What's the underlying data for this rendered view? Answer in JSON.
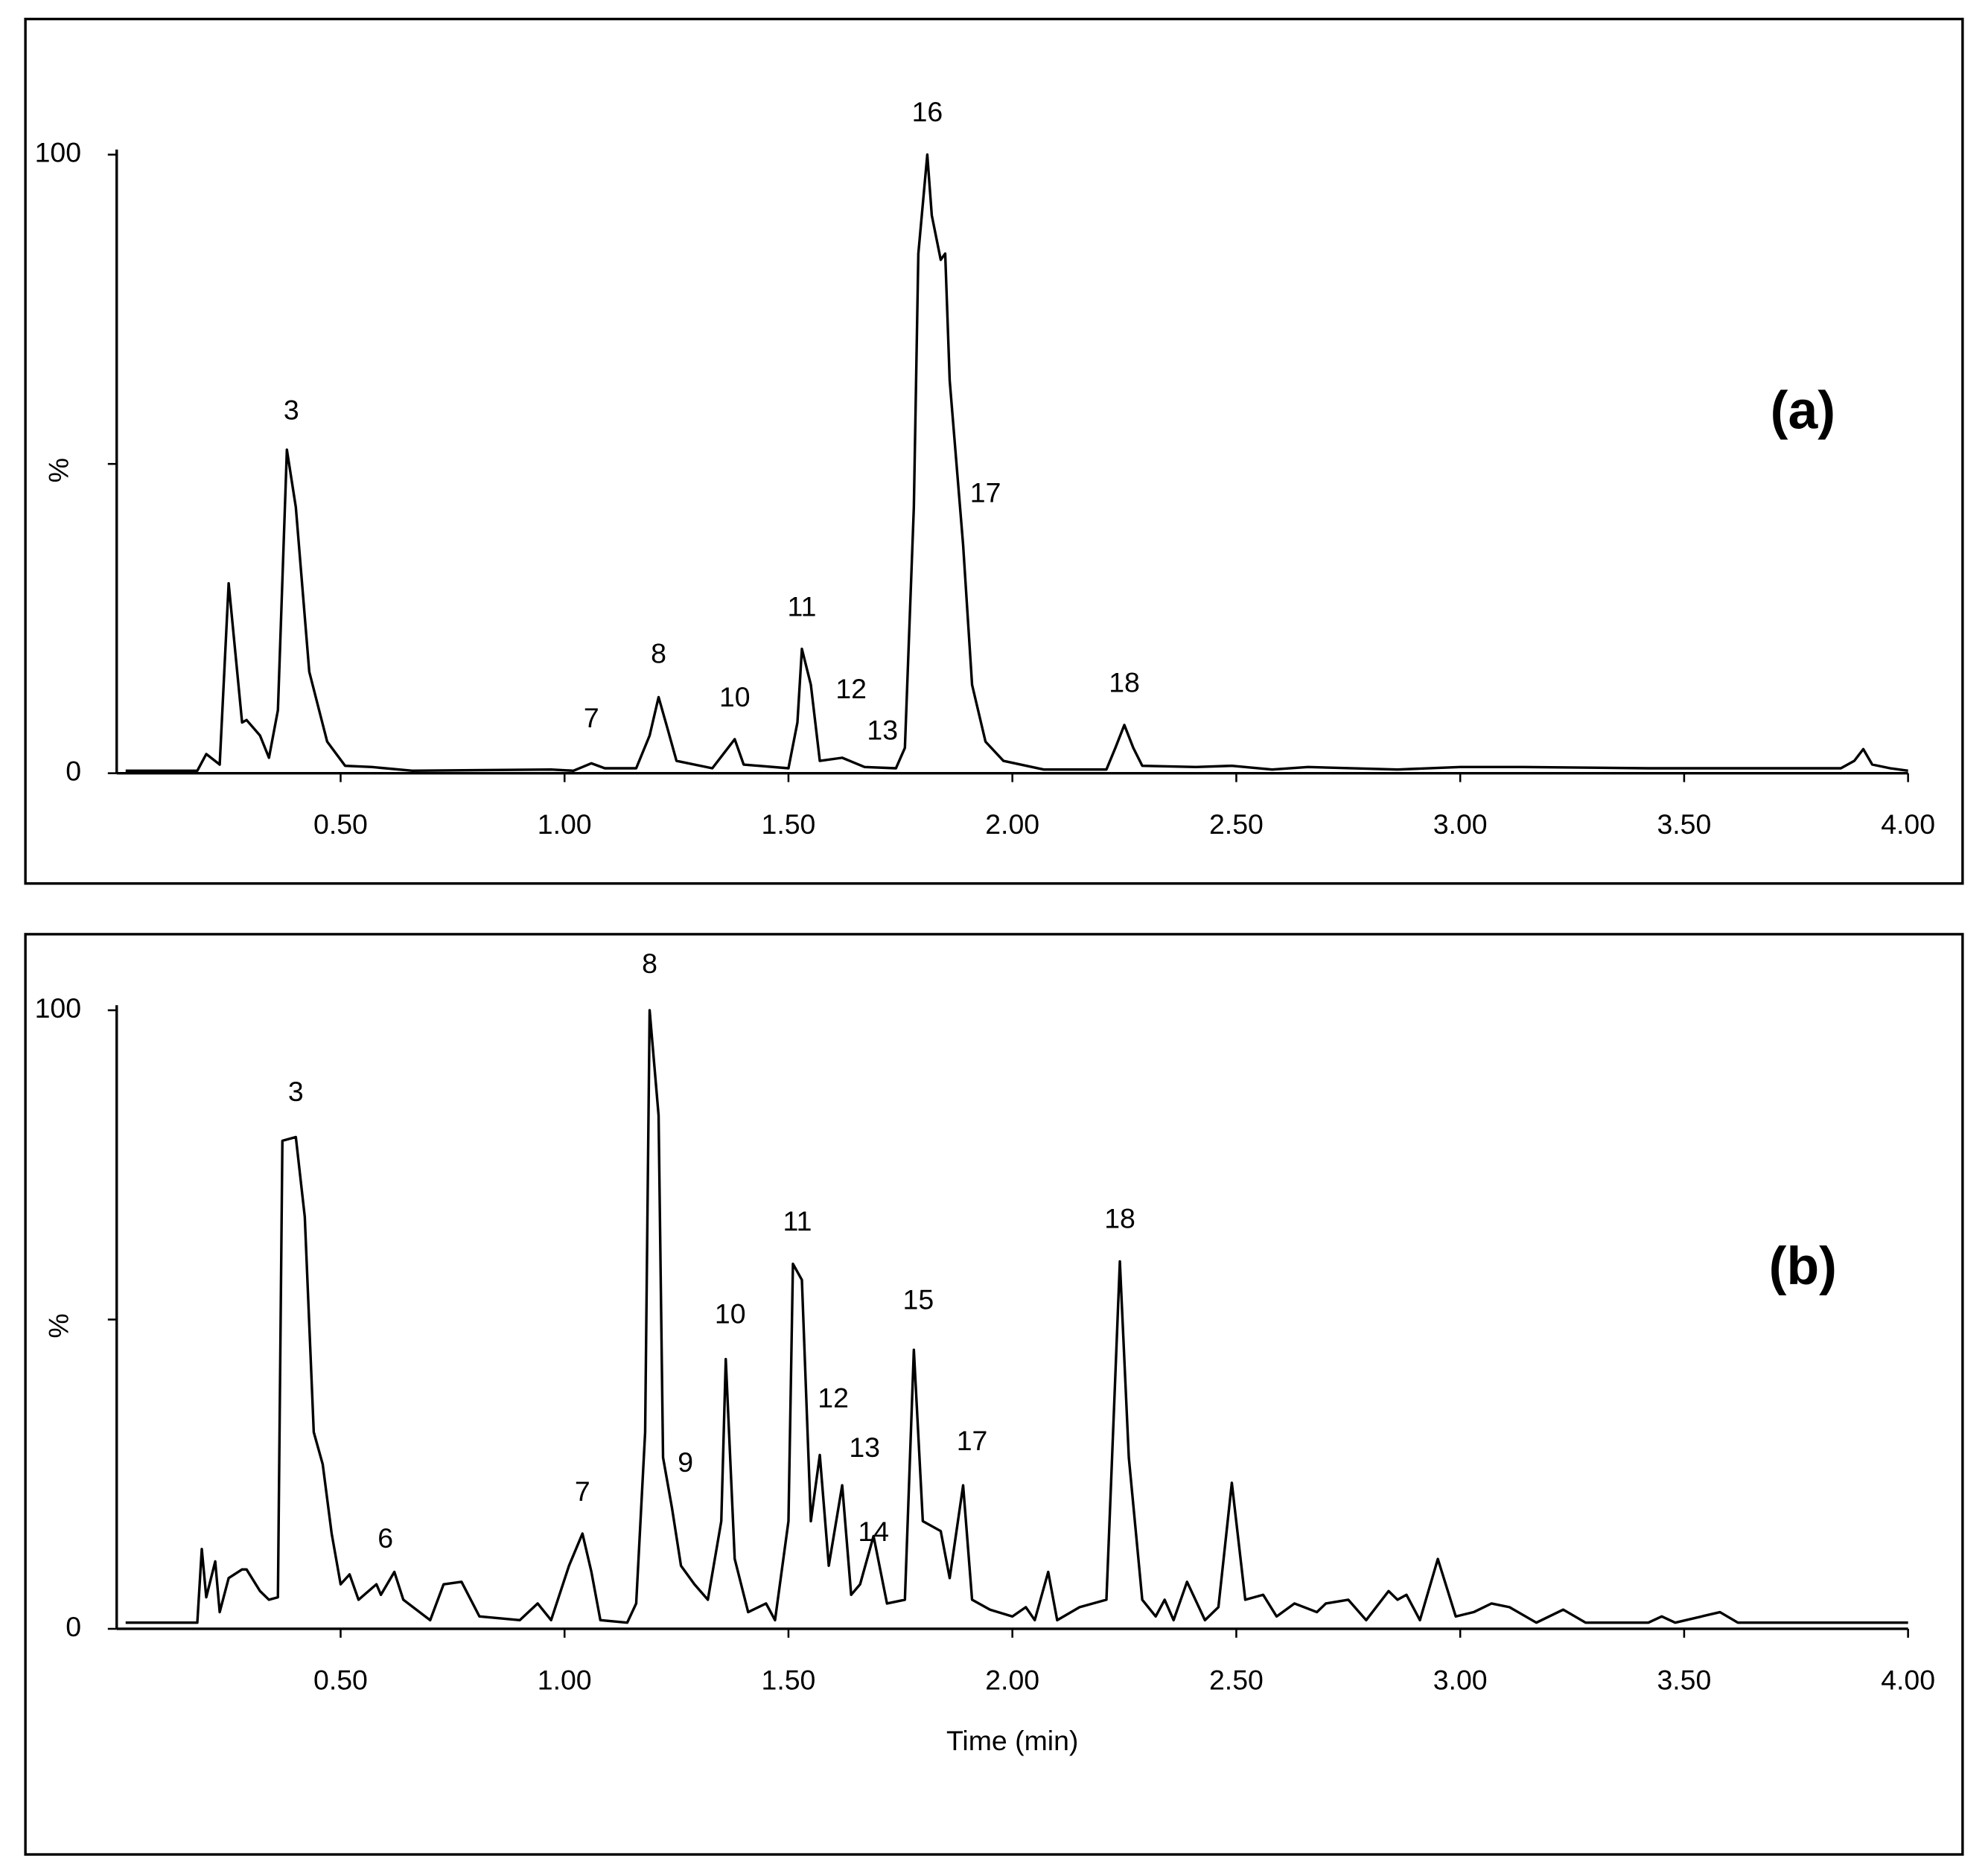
{
  "chart_data": [
    {
      "type": "line",
      "panel_label": "(a)",
      "ylabel": "%",
      "color": "#000000",
      "xlim": [
        0,
        4
      ],
      "ylim": [
        0,
        100
      ],
      "xticks": [
        {
          "value": 0.5,
          "label": "0.50"
        },
        {
          "value": 1,
          "label": "1.00"
        },
        {
          "value": 1.5,
          "label": "1.50"
        },
        {
          "value": 2,
          "label": "2.00"
        },
        {
          "value": 2.5,
          "label": "2.50"
        },
        {
          "value": 3,
          "label": "3.00"
        },
        {
          "value": 3.5,
          "label": "3.50"
        },
        {
          "value": 4,
          "label": "4.00"
        }
      ],
      "yticks": [
        0,
        {
          "value": 50,
          "label": null
        },
        100
      ],
      "x": [
        0.02,
        0.18,
        0.2,
        0.23,
        0.25,
        0.28,
        0.29,
        0.32,
        0.34,
        0.36,
        0.38,
        0.4,
        0.43,
        0.47,
        0.51,
        0.57,
        0.66,
        0.97,
        1.02,
        1.06,
        1.09,
        1.16,
        1.19,
        1.21,
        1.23,
        1.25,
        1.33,
        1.38,
        1.4,
        1.5,
        1.52,
        1.53,
        1.55,
        1.57,
        1.62,
        1.67,
        1.74,
        1.76,
        1.78,
        1.79,
        1.81,
        1.82,
        1.84,
        1.85,
        1.86,
        1.89,
        1.91,
        1.94,
        1.98,
        2.07,
        2.21,
        2.23,
        2.25,
        2.27,
        2.29,
        2.41,
        2.49,
        2.58,
        2.66,
        2.86,
        3.0,
        3.14,
        3.42,
        3.85,
        3.88,
        3.9,
        3.92,
        3.96,
        4.0
      ],
      "values": [
        0.4,
        0.4,
        3.1,
        1.4,
        30.7,
        8.2,
        8.6,
        6.1,
        2.5,
        10.2,
        52.3,
        43,
        16.4,
        5.1,
        1.2,
        1,
        0.4,
        0.6,
        0.4,
        1.6,
        0.8,
        0.8,
        6.1,
        12.3,
        7.2,
        2,
        0.8,
        5.5,
        1.4,
        0.8,
        8.2,
        20.1,
        14.3,
        2,
        2.5,
        1,
        0.8,
        4.1,
        43,
        84,
        100,
        90.2,
        83,
        84,
        63.5,
        36.9,
        14.3,
        5.1,
        2,
        0.6,
        0.6,
        4.1,
        7.8,
        4.1,
        1.2,
        1,
        1.2,
        0.6,
        1,
        0.6,
        1,
        1,
        0.8,
        0.8,
        2,
        3.9,
        1.4,
        0.8,
        0.4
      ],
      "annotations": [
        {
          "text": "3",
          "x": 0.39,
          "y": 58.4
        },
        {
          "text": "7",
          "x": 1.06,
          "y": 8.6
        },
        {
          "text": "8",
          "x": 1.21,
          "y": 19
        },
        {
          "text": "10",
          "x": 1.38,
          "y": 12
        },
        {
          "text": "11",
          "x": 1.53,
          "y": 26.6
        },
        {
          "text": "12",
          "x": 1.64,
          "y": 13.3
        },
        {
          "text": "13",
          "x": 1.71,
          "y": 6.6
        },
        {
          "text": "16",
          "x": 1.81,
          "y": 106.6
        },
        {
          "text": "17",
          "x": 1.94,
          "y": 45
        },
        {
          "text": "18",
          "x": 2.25,
          "y": 14.3
        }
      ]
    },
    {
      "type": "line",
      "panel_label": "(b)",
      "ylabel": "%",
      "xlabel": "Time (min)",
      "color": "#000000",
      "xlim": [
        0,
        4
      ],
      "ylim": [
        0,
        100
      ],
      "xticks": [
        {
          "value": 0.5,
          "label": "0.50"
        },
        {
          "value": 1,
          "label": "1.00"
        },
        {
          "value": 1.5,
          "label": "1.50"
        },
        {
          "value": 2,
          "label": "2.00"
        },
        {
          "value": 2.5,
          "label": "2.50"
        },
        {
          "value": 3,
          "label": "3.00"
        },
        {
          "value": 3.5,
          "label": "3.50"
        },
        {
          "value": 4,
          "label": "4.00"
        }
      ],
      "yticks": [
        0,
        {
          "value": 50,
          "label": null
        },
        100
      ],
      "x": [
        0.02,
        0.18,
        0.19,
        0.2,
        0.22,
        0.23,
        0.25,
        0.28,
        0.29,
        0.32,
        0.34,
        0.36,
        0.37,
        0.4,
        0.42,
        0.44,
        0.46,
        0.48,
        0.5,
        0.52,
        0.54,
        0.58,
        0.59,
        0.62,
        0.64,
        0.7,
        0.73,
        0.77,
        0.81,
        0.9,
        0.94,
        0.97,
        1.01,
        1.04,
        1.06,
        1.08,
        1.14,
        1.16,
        1.18,
        1.19,
        1.21,
        1.22,
        1.24,
        1.26,
        1.29,
        1.32,
        1.35,
        1.36,
        1.38,
        1.41,
        1.45,
        1.47,
        1.5,
        1.51,
        1.53,
        1.55,
        1.57,
        1.59,
        1.62,
        1.64,
        1.66,
        1.69,
        1.72,
        1.76,
        1.78,
        1.8,
        1.84,
        1.86,
        1.89,
        1.91,
        1.95,
        2.0,
        2.03,
        2.05,
        2.08,
        2.1,
        2.15,
        2.18,
        2.21,
        2.24,
        2.26,
        2.29,
        2.32,
        2.34,
        2.36,
        2.39,
        2.43,
        2.46,
        2.49,
        2.52,
        2.56,
        2.59,
        2.63,
        2.68,
        2.7,
        2.75,
        2.79,
        2.84,
        2.86,
        2.88,
        2.91,
        2.95,
        2.99,
        3.03,
        3.07,
        3.11,
        3.17,
        3.23,
        3.28,
        3.42,
        3.45,
        3.48,
        3.58,
        3.62,
        4.0
      ],
      "values": [
        1,
        1,
        12.9,
        5.1,
        10.9,
        2.7,
        8.2,
        9.6,
        9.6,
        6.1,
        4.7,
        5.1,
        78.9,
        79.5,
        66.6,
        31.8,
        26.6,
        15.4,
        7.2,
        8.8,
        4.7,
        7.2,
        5.5,
        9.2,
        4.7,
        1.4,
        7.2,
        7.6,
        2,
        1.4,
        4.1,
        1.4,
        10.2,
        15.4,
        9.2,
        1.4,
        1,
        4.1,
        31.8,
        100,
        83,
        27.7,
        19.5,
        10.2,
        7.2,
        4.7,
        17.4,
        43.6,
        11.3,
        2.7,
        4.1,
        1.4,
        17.4,
        59,
        56.4,
        17.4,
        28.1,
        10.2,
        23.2,
        5.5,
        7.2,
        15,
        4.1,
        4.7,
        45.1,
        17.4,
        15.8,
        8.2,
        23.2,
        4.7,
        3.1,
        2,
        3.5,
        1.4,
        9.2,
        1.4,
        3.5,
        4.1,
        4.7,
        59.4,
        27.7,
        4.7,
        2,
        4.7,
        1.4,
        7.6,
        1.4,
        3.5,
        23.6,
        4.7,
        5.5,
        2,
        4.1,
        2.7,
        4.1,
        4.7,
        1.4,
        6.1,
        4.7,
        5.5,
        1.4,
        11.3,
        2,
        2.7,
        4.1,
        3.5,
        1,
        3.1,
        1,
        1,
        2,
        1,
        2.7,
        1,
        1
      ],
      "annotations": [
        {
          "text": "3",
          "x": 0.4,
          "y": 86.5
        },
        {
          "text": "6",
          "x": 0.6,
          "y": 14.3
        },
        {
          "text": "7",
          "x": 1.04,
          "y": 21.9
        },
        {
          "text": "8",
          "x": 1.19,
          "y": 107.2
        },
        {
          "text": "9",
          "x": 1.27,
          "y": 26.6
        },
        {
          "text": "10",
          "x": 1.37,
          "y": 50.6
        },
        {
          "text": "11",
          "x": 1.52,
          "y": 65.6
        },
        {
          "text": "12",
          "x": 1.6,
          "y": 37
        },
        {
          "text": "13",
          "x": 1.67,
          "y": 29
        },
        {
          "text": "14",
          "x": 1.69,
          "y": 15.4
        },
        {
          "text": "15",
          "x": 1.79,
          "y": 52.9
        },
        {
          "text": "17",
          "x": 1.91,
          "y": 30.1
        },
        {
          "text": "18",
          "x": 2.24,
          "y": 66
        }
      ]
    }
  ]
}
